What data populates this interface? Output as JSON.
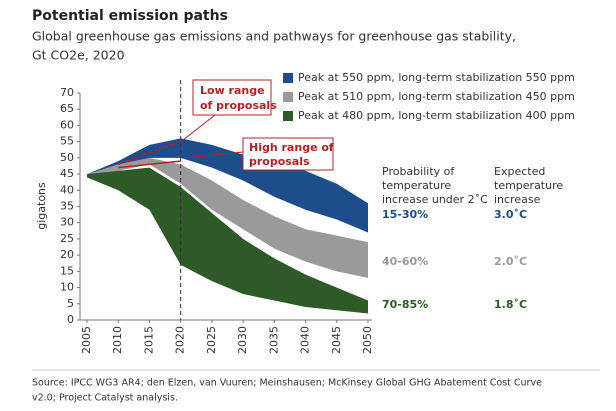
{
  "chart_data": {
    "type": "range-area",
    "title": "Potential emission paths",
    "subtitle": [
      "Global greenhouse gas emissions and pathways for greenhouse gas stability,",
      "Gt CO2e, 2020"
    ],
    "y_label": "gigatons",
    "x": [
      2005,
      2010,
      2015,
      2020,
      2025,
      2030,
      2035,
      2040,
      2045,
      2050
    ],
    "xlim": [
      2005,
      2050
    ],
    "ylim": [
      0,
      70
    ],
    "yticks": [
      0,
      5,
      10,
      15,
      20,
      25,
      30,
      35,
      40,
      45,
      50,
      55,
      60,
      65,
      70
    ],
    "series": [
      {
        "name": "Peak at 550 ppm, long-term stabilization 550 ppm",
        "color": "#1d4d8a",
        "high": [
          45,
          49,
          54,
          56,
          54,
          51,
          48,
          46,
          42,
          36
        ],
        "low": [
          44,
          47,
          50,
          50,
          47,
          43,
          38,
          34,
          31,
          27
        ],
        "probability": "15-30%",
        "temperature": "3.0˚C"
      },
      {
        "name": "Peak at 510 ppm, long-term stabilization 450 ppm",
        "color": "#9a9a9a",
        "high": [
          45,
          48,
          50,
          48,
          43,
          37,
          32,
          28,
          26,
          24
        ],
        "low": [
          44,
          46,
          48,
          42,
          34,
          28,
          22,
          18,
          15,
          13
        ],
        "probability": "40-60%",
        "temperature": "2.0˚C"
      },
      {
        "name": "Peak at 480 ppm, long-term stabilization 400 ppm",
        "color": "#2d5a27",
        "high": [
          45,
          46,
          47,
          41,
          33,
          25,
          19,
          14,
          10,
          6
        ],
        "low": [
          44,
          40,
          34,
          17,
          12,
          8,
          6,
          4,
          3,
          2
        ],
        "probability": "70-85%",
        "temperature": "1.8˚C"
      }
    ],
    "marker_year": 2020,
    "table_headers": [
      [
        "Probability of",
        "temperature",
        "increase under 2˚C"
      ],
      [
        "Expected",
        "temperature",
        "increase"
      ]
    ],
    "annotations": [
      [
        "Low range",
        "of proposals"
      ],
      [
        "High range of",
        "proposals"
      ]
    ],
    "source": [
      "Source: IPCC WG3 AR4; den Elzen, van Vuuren; Meinshausen; McKinsey Global GHG Abatement Cost Curve",
      "v2.0; Project Catalyst analysis."
    ]
  }
}
